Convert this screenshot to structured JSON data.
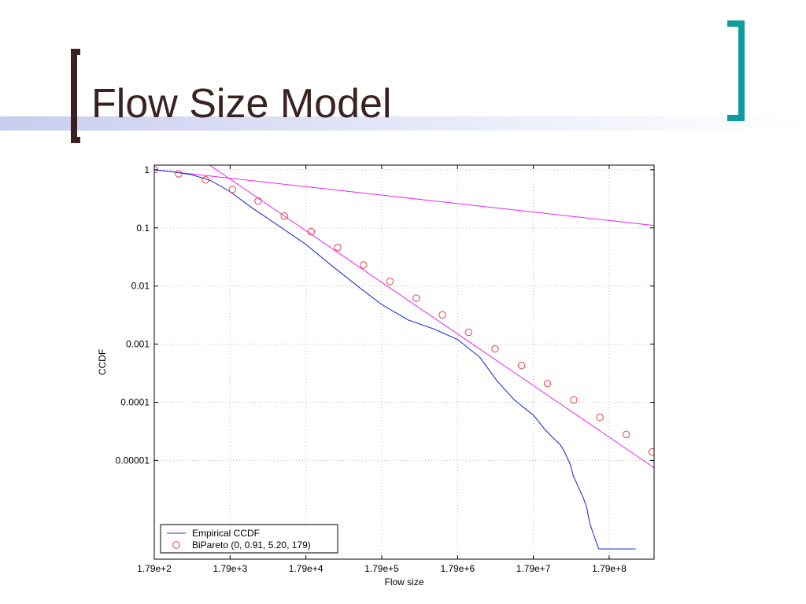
{
  "slide": {
    "title": "Flow Size Model"
  },
  "colors": {
    "title_text": "#3a2222",
    "left_bracket": "#3a2222",
    "right_bracket": "#0f9b9b",
    "empirical_line": "#2233cc",
    "fit_marker": "#e8404a",
    "fit_lines": "#ee22ee",
    "grid": "#bbbbbb"
  },
  "chart_data": {
    "type": "line",
    "title": "",
    "xlabel": "Flow size",
    "ylabel": "CCDF",
    "xscale": "log",
    "yscale": "log",
    "xlim": [
      179,
      700000000
    ],
    "ylim": [
      2e-07,
      1.2
    ],
    "grid": true,
    "legend_position": "bottom-left",
    "x_tick_values": [
      179,
      1790,
      17900,
      179000,
      1790000,
      17900000,
      179000000
    ],
    "x_tick_labels": [
      "1.79e+2",
      "1.79e+3",
      "1.79e+4",
      "1.79e+5",
      "1.79e+6",
      "1.79e+7",
      "1.79e+8"
    ],
    "y_tick_values": [
      1,
      0.1,
      0.01,
      0.001,
      0.0001,
      1e-05
    ],
    "y_tick_labels": [
      "1",
      "0.1",
      "0.01",
      "0.001",
      "0.0001",
      "0.00001"
    ],
    "series": [
      {
        "name": "Empirical CCDF",
        "style": "line",
        "color": "#2233cc",
        "x": [
          179,
          300,
          560,
          1000,
          1790,
          3500,
          7000,
          17900,
          40000,
          90000,
          179000,
          400000,
          900000,
          1790000,
          3500000,
          6000000,
          10000000,
          17900000,
          25000000,
          32000000,
          40000000,
          45000000,
          55000000,
          60000000,
          70000000,
          80000000,
          90000000,
          100000000,
          130000000,
          179000000,
          250000000,
          400000000
        ],
        "y": [
          1,
          0.93,
          0.82,
          0.65,
          0.42,
          0.22,
          0.12,
          0.052,
          0.022,
          0.0095,
          0.0048,
          0.0026,
          0.0018,
          0.0012,
          0.0006,
          0.00023,
          0.00011,
          6e-05,
          3.5e-05,
          2.5e-05,
          1.9e-05,
          1.5e-05,
          8.5e-06,
          5.5e-06,
          3.5e-06,
          2.4e-06,
          1.6e-06,
          8e-07,
          3e-07,
          3e-07,
          3e-07,
          3e-07
        ]
      },
      {
        "name": "BiPareto (0, 0.91, 5.20, 179)",
        "style": "markers",
        "color": "#e8404a",
        "x": [
          179,
          375,
          850,
          1920,
          4200,
          9300,
          21000,
          47000,
          103000,
          230000,
          510000,
          1130000,
          2500000,
          5600000,
          12500000,
          27500000,
          61000000,
          135000000,
          300000000,
          660000000
        ],
        "y": [
          1,
          0.85,
          0.67,
          0.46,
          0.29,
          0.16,
          0.086,
          0.046,
          0.023,
          0.012,
          0.0062,
          0.0032,
          0.0016,
          0.00083,
          0.00043,
          0.00021,
          0.00011,
          5.5e-05,
          2.8e-05,
          1.4e-05
        ]
      },
      {
        "name": "",
        "style": "line",
        "color": "#ee22ee",
        "x": [
          179,
          700000000
        ],
        "y": [
          1,
          0.11
        ]
      },
      {
        "name": "",
        "style": "line",
        "color": "#ee22ee",
        "x": [
          960,
          700000000
        ],
        "y": [
          1.2,
          7.5e-06
        ]
      }
    ]
  }
}
